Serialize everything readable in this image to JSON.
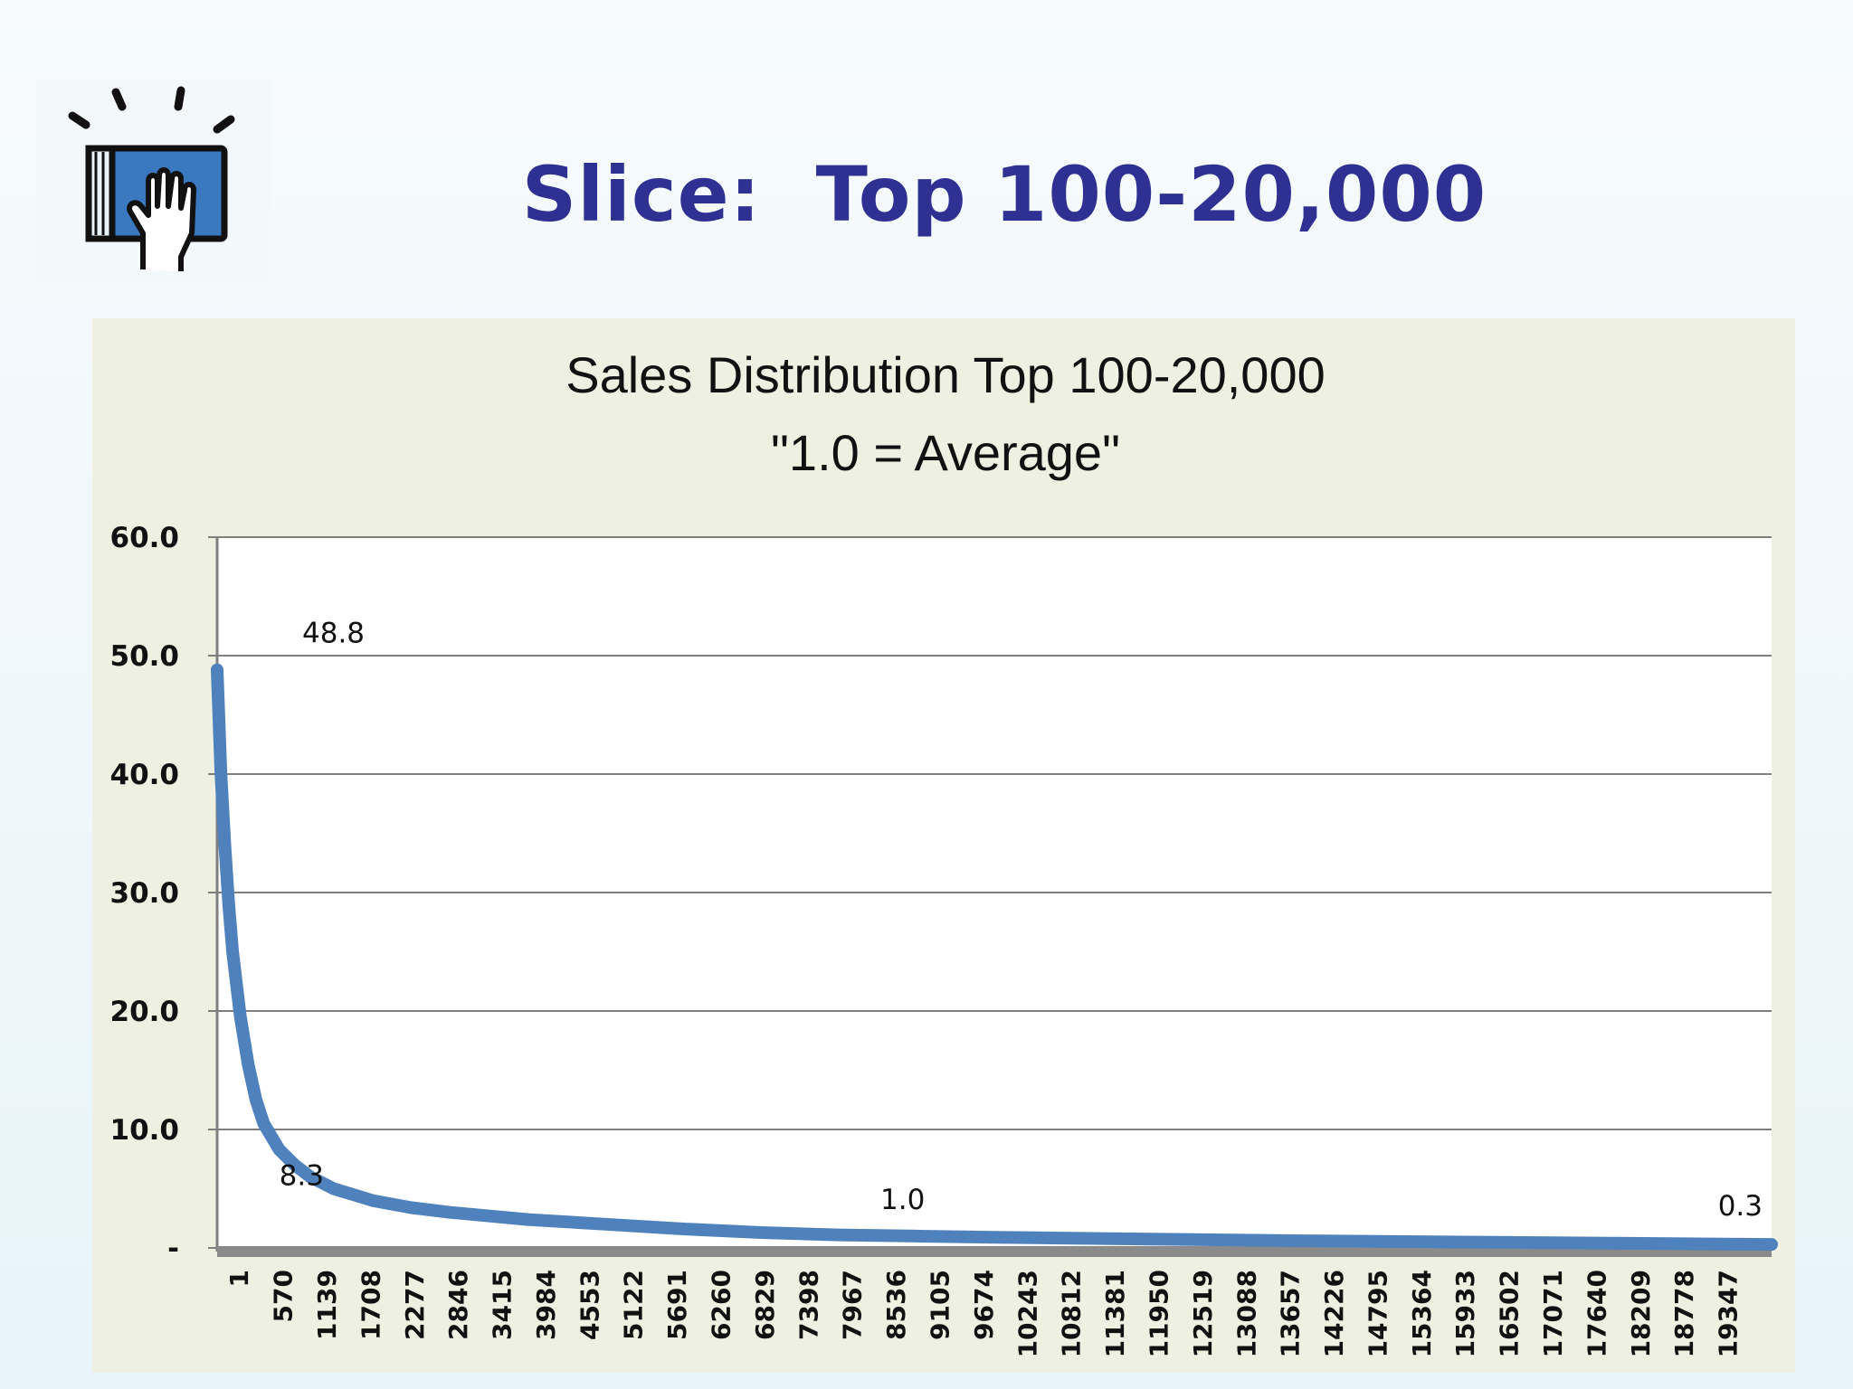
{
  "slide": {
    "title": "Slice:  Top 100-20,000",
    "logo_icon": "hand-on-book-icon"
  },
  "colors": {
    "title": "#2e3192",
    "series": "#4f81bd",
    "panel": "#eef1e1",
    "plot": "#ffffff",
    "grid": "#7f7f7f"
  },
  "chart_data": {
    "type": "line",
    "title": "Sales Distribution Top 100-20,000",
    "subtitle": "\"1.0 = Average\"",
    "xlabel": "",
    "ylabel": "",
    "ylim": [
      0,
      60
    ],
    "xlim": [
      1,
      20000
    ],
    "grid": true,
    "legend": "none",
    "y_ticks": [
      0,
      10,
      20,
      30,
      40,
      50,
      60
    ],
    "y_tick_labels": [
      "-",
      "10.0",
      "20.0",
      "30.0",
      "40.0",
      "50.0",
      "60.0"
    ],
    "x_tick_labels": [
      "1",
      "570",
      "1139",
      "1708",
      "2277",
      "2846",
      "3415",
      "3984",
      "4553",
      "5122",
      "5691",
      "6260",
      "6829",
      "7398",
      "7967",
      "8536",
      "9105",
      "9674",
      "10243",
      "10812",
      "11381",
      "11950",
      "12519",
      "13088",
      "13657",
      "14226",
      "14795",
      "15364",
      "15933",
      "16502",
      "17071",
      "17640",
      "18209",
      "18778",
      "19347"
    ],
    "series": [
      {
        "color": "#4f81bd",
        "x": [
          1,
          50,
          100,
          150,
          200,
          300,
          400,
          500,
          600,
          800,
          1000,
          1200,
          1500,
          2000,
          2500,
          3000,
          4000,
          5000,
          6000,
          7000,
          8000,
          9000,
          10000,
          12000,
          14000,
          16000,
          18000,
          20000
        ],
        "y": [
          48.8,
          40.0,
          34.0,
          29.0,
          25.0,
          19.5,
          15.5,
          12.5,
          10.5,
          8.3,
          7.0,
          6.0,
          5.0,
          4.0,
          3.4,
          3.0,
          2.4,
          2.0,
          1.6,
          1.3,
          1.1,
          1.0,
          0.9,
          0.75,
          0.6,
          0.5,
          0.4,
          0.3
        ]
      }
    ],
    "data_labels": [
      {
        "x": 1,
        "y": 48.8,
        "text": "48.8"
      },
      {
        "x": 800,
        "y": 8.3,
        "text": "8.3"
      },
      {
        "x": 9000,
        "y": 1.0,
        "text": "1.0"
      },
      {
        "x": 20000,
        "y": 0.3,
        "text": "0.3"
      }
    ]
  }
}
